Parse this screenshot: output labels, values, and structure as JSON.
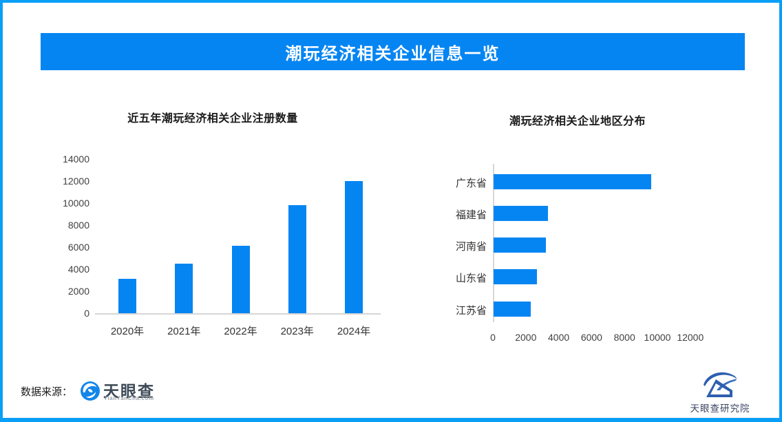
{
  "page": {
    "frame_color": "#0a9ff7",
    "accent_color": "#0585f2"
  },
  "header": {
    "title": "潮玩经济相关企业信息一览"
  },
  "chart_data": [
    {
      "type": "bar",
      "orientation": "vertical",
      "title": "近五年潮玩经济相关企业注册数量",
      "categories": [
        "2020年",
        "2021年",
        "2022年",
        "2023年",
        "2024年"
      ],
      "values": [
        3100,
        4500,
        6100,
        9800,
        12000
      ],
      "ylim": [
        0,
        14000
      ],
      "ytick_step": 2000,
      "bar_color": "#0585f2",
      "grid": false,
      "legend": "none"
    },
    {
      "type": "bar",
      "orientation": "horizontal",
      "title": "潮玩经济相关企业地区分布",
      "categories": [
        "广东省",
        "福建省",
        "河南省",
        "山东省",
        "江苏省"
      ],
      "values": [
        9600,
        3300,
        3200,
        2650,
        2270
      ],
      "xlim": [
        0,
        12000
      ],
      "xtick_step": 2000,
      "bar_color": "#0585f2",
      "grid": false,
      "legend": "none"
    }
  ],
  "footer": {
    "source_label": "数据来源：",
    "tianyancha": {
      "name": "天眼查",
      "domain": "TianYanCha.com"
    },
    "institute": {
      "name": "天眼查研究院"
    }
  }
}
